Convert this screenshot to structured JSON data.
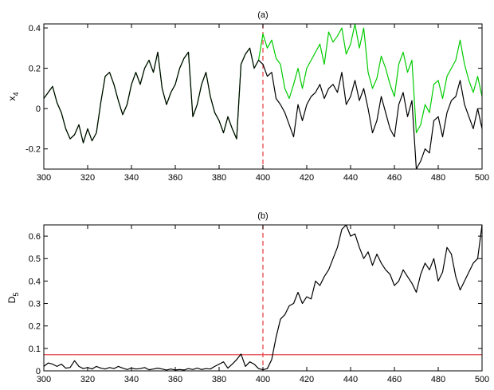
{
  "chart_data": [
    {
      "type": "line",
      "title": "(a)",
      "ylabel": "x",
      "ylabel_subscript": "4",
      "xlim": [
        300,
        500
      ],
      "ylim": [
        -0.3,
        0.42
      ],
      "xticks": [
        300,
        320,
        340,
        360,
        380,
        400,
        420,
        440,
        460,
        480,
        500
      ],
      "yticks": [
        -0.2,
        0,
        0.2,
        0.4
      ],
      "ytick_labels": [
        "-0.2",
        "0",
        "0.2",
        "0.4"
      ],
      "grid": false,
      "vline": {
        "x": 400,
        "color": "#e8474a",
        "style": "dashed"
      },
      "series": [
        {
          "color": "#00cc00",
          "x": [
            300,
            302,
            304,
            306,
            308,
            310,
            312,
            314,
            316,
            318,
            320,
            322,
            324,
            326,
            328,
            330,
            332,
            334,
            336,
            338,
            340,
            342,
            344,
            346,
            348,
            350,
            352,
            354,
            356,
            358,
            360,
            362,
            364,
            366,
            368,
            370,
            372,
            374,
            376,
            378,
            380,
            382,
            384,
            386,
            388,
            390,
            392,
            394,
            396,
            398,
            400,
            402,
            404,
            406,
            408,
            410,
            412,
            414,
            416,
            418,
            420,
            422,
            424,
            426,
            428,
            430,
            432,
            434,
            436,
            438,
            440,
            442,
            444,
            446,
            448,
            450,
            452,
            454,
            456,
            458,
            460,
            462,
            464,
            466,
            468,
            470,
            472,
            474,
            476,
            478,
            480,
            482,
            484,
            486,
            488,
            490,
            492,
            494,
            496,
            498,
            500
          ],
          "y": [
            0.05,
            0.08,
            0.11,
            0.03,
            -0.02,
            -0.1,
            -0.15,
            -0.13,
            -0.08,
            -0.17,
            -0.1,
            -0.16,
            -0.12,
            0.03,
            0.16,
            0.18,
            0.12,
            0.04,
            -0.03,
            0.02,
            0.12,
            0.18,
            0.12,
            0.2,
            0.24,
            0.18,
            0.28,
            0.1,
            0.02,
            0.08,
            0.12,
            0.2,
            0.25,
            0.28,
            -0.04,
            0.02,
            0.12,
            0.18,
            0.06,
            -0.02,
            -0.06,
            -0.12,
            -0.04,
            -0.1,
            -0.15,
            0.22,
            0.27,
            0.3,
            0.2,
            0.24,
            0.37,
            0.3,
            0.34,
            0.25,
            0.22,
            0.1,
            0.05,
            0.12,
            0.2,
            0.1,
            0.2,
            0.24,
            0.28,
            0.32,
            0.22,
            0.38,
            0.33,
            0.36,
            0.4,
            0.27,
            0.32,
            0.42,
            0.3,
            0.4,
            0.18,
            0.1,
            0.15,
            0.26,
            0.2,
            0.12,
            0.06,
            0.22,
            0.28,
            0.18,
            0.24,
            -0.12,
            -0.08,
            0.02,
            -0.02,
            0.12,
            0.14,
            0.05,
            0.16,
            0.2,
            0.24,
            0.34,
            0.22,
            0.14,
            0.08,
            0.16,
            0.06
          ]
        },
        {
          "color": "#000000",
          "x": [
            300,
            302,
            304,
            306,
            308,
            310,
            312,
            314,
            316,
            318,
            320,
            322,
            324,
            326,
            328,
            330,
            332,
            334,
            336,
            338,
            340,
            342,
            344,
            346,
            348,
            350,
            352,
            354,
            356,
            358,
            360,
            362,
            364,
            366,
            368,
            370,
            372,
            374,
            376,
            378,
            380,
            382,
            384,
            386,
            388,
            390,
            392,
            394,
            396,
            398,
            400,
            402,
            404,
            406,
            408,
            410,
            412,
            414,
            416,
            418,
            420,
            422,
            424,
            426,
            428,
            430,
            432,
            434,
            436,
            438,
            440,
            442,
            444,
            446,
            448,
            450,
            452,
            454,
            456,
            458,
            460,
            462,
            464,
            466,
            468,
            470,
            472,
            474,
            476,
            478,
            480,
            482,
            484,
            486,
            488,
            490,
            492,
            494,
            496,
            498,
            500
          ],
          "y": [
            0.05,
            0.08,
            0.11,
            0.03,
            -0.02,
            -0.1,
            -0.15,
            -0.13,
            -0.08,
            -0.17,
            -0.1,
            -0.16,
            -0.12,
            0.03,
            0.16,
            0.18,
            0.12,
            0.04,
            -0.03,
            0.02,
            0.12,
            0.18,
            0.12,
            0.2,
            0.24,
            0.18,
            0.28,
            0.1,
            0.02,
            0.08,
            0.12,
            0.2,
            0.25,
            0.28,
            -0.04,
            0.02,
            0.12,
            0.18,
            0.06,
            -0.02,
            -0.06,
            -0.12,
            -0.04,
            -0.1,
            -0.15,
            0.22,
            0.27,
            0.3,
            0.2,
            0.24,
            0.22,
            0.16,
            0.18,
            0.05,
            0.02,
            -0.02,
            -0.08,
            -0.14,
            0.02,
            -0.06,
            0.02,
            0.06,
            0.08,
            0.12,
            0.05,
            0.1,
            0.12,
            0.08,
            0.18,
            0.02,
            0.06,
            0.14,
            0.04,
            0.1,
            0.0,
            -0.12,
            -0.06,
            0.06,
            -0.02,
            -0.1,
            -0.14,
            0.02,
            0.08,
            -0.04,
            0.04,
            -0.3,
            -0.26,
            -0.2,
            -0.22,
            -0.06,
            -0.04,
            -0.14,
            -0.02,
            0.04,
            0.06,
            0.14,
            0.02,
            -0.04,
            -0.1,
            0.0,
            -0.1
          ]
        }
      ]
    },
    {
      "type": "line",
      "title": "(b)",
      "ylabel": "D",
      "ylabel_subscript": "5",
      "xlim": [
        300,
        500
      ],
      "ylim": [
        0,
        0.65
      ],
      "xticks": [
        300,
        320,
        340,
        360,
        380,
        400,
        420,
        440,
        460,
        480,
        500
      ],
      "yticks": [
        0,
        0.1,
        0.2,
        0.3,
        0.4,
        0.5,
        0.6
      ],
      "ytick_labels": [
        "0",
        "0.1",
        "0.2",
        "0.3",
        "0.4",
        "0.5",
        "0.6"
      ],
      "grid": false,
      "vline": {
        "x": 400,
        "color": "#e8474a",
        "style": "dashed"
      },
      "hline": {
        "y": 0.072,
        "color": "#e8474a",
        "style": "solid"
      },
      "series": [
        {
          "color": "#000000",
          "x": [
            300,
            302,
            304,
            306,
            308,
            310,
            312,
            314,
            316,
            318,
            320,
            322,
            324,
            326,
            328,
            330,
            332,
            334,
            336,
            338,
            340,
            342,
            344,
            346,
            348,
            350,
            352,
            354,
            356,
            358,
            360,
            362,
            364,
            366,
            368,
            370,
            372,
            374,
            376,
            378,
            380,
            382,
            384,
            386,
            388,
            390,
            392,
            394,
            396,
            398,
            400,
            402,
            404,
            406,
            408,
            410,
            412,
            414,
            416,
            418,
            420,
            422,
            424,
            426,
            428,
            430,
            432,
            434,
            436,
            438,
            440,
            442,
            444,
            446,
            448,
            450,
            452,
            454,
            456,
            458,
            460,
            462,
            464,
            466,
            468,
            470,
            472,
            474,
            476,
            478,
            480,
            482,
            484,
            486,
            488,
            490,
            492,
            494,
            496,
            498,
            500
          ],
          "y": [
            0.02,
            0.035,
            0.03,
            0.02,
            0.03,
            0.012,
            0.015,
            0.045,
            0.02,
            0.01,
            0.015,
            0.008,
            0.02,
            0.012,
            0.008,
            0.015,
            0.01,
            0.02,
            0.012,
            0.006,
            0.012,
            0.008,
            0.01,
            0.015,
            0.005,
            0.008,
            0.012,
            0.008,
            0.004,
            0.008,
            0.004,
            0.006,
            0.004,
            0.01,
            0.006,
            0.012,
            0.006,
            0.01,
            0.008,
            0.02,
            0.03,
            0.04,
            0.012,
            0.03,
            0.05,
            0.075,
            0.02,
            0.04,
            0.03,
            0.01,
            0.005,
            0.01,
            0.05,
            0.15,
            0.23,
            0.25,
            0.29,
            0.3,
            0.35,
            0.3,
            0.33,
            0.32,
            0.4,
            0.38,
            0.42,
            0.45,
            0.5,
            0.55,
            0.63,
            0.65,
            0.6,
            0.61,
            0.55,
            0.5,
            0.53,
            0.47,
            0.52,
            0.48,
            0.45,
            0.43,
            0.38,
            0.4,
            0.45,
            0.42,
            0.39,
            0.35,
            0.43,
            0.48,
            0.45,
            0.5,
            0.4,
            0.44,
            0.55,
            0.52,
            0.42,
            0.36,
            0.4,
            0.44,
            0.48,
            0.5,
            0.65
          ]
        }
      ]
    }
  ]
}
